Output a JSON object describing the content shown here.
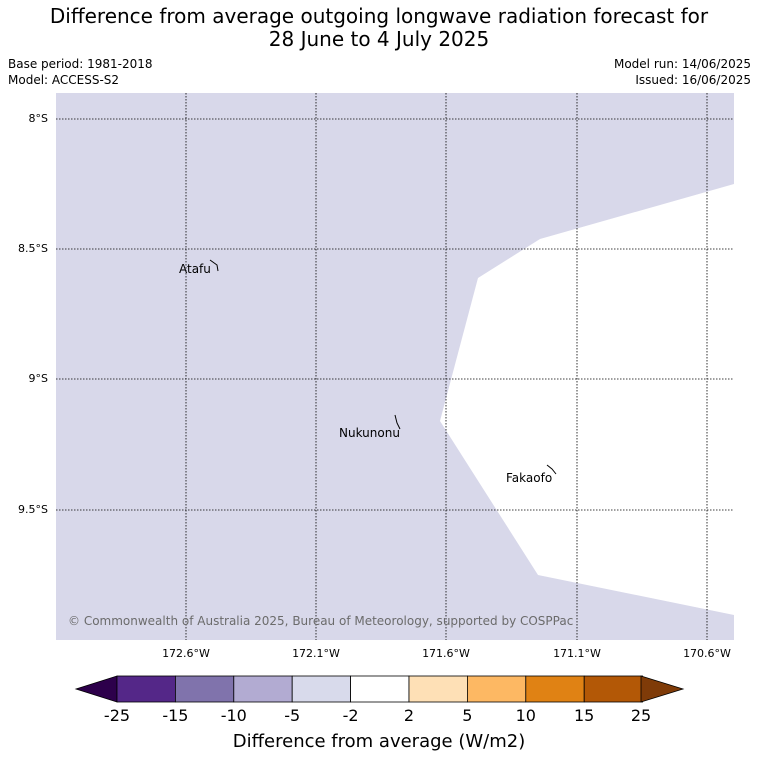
{
  "header": {
    "title_line1": "Difference from average outgoing longwave radiation forecast for",
    "title_line2": "28 June to 4 July 2025",
    "base_period": "Base period: 1981-2018",
    "model": "Model: ACCESS-S2",
    "model_run": "Model run: 14/06/2025",
    "issued": "Issued: 16/06/2025"
  },
  "map": {
    "lat_labels": [
      "8°S",
      "8.5°S",
      "9°S",
      "9.5°S"
    ],
    "lon_labels": [
      "172.6°W",
      "172.1°W",
      "171.6°W",
      "171.1°W",
      "170.6°W"
    ],
    "places": [
      "Atafu",
      "Nukunonu",
      "Fakaofo"
    ],
    "copyright": "© Commonwealth of Australia 2025, Bureau of Meteorology, supported by COSPPac",
    "fill_colors": {
      "neg_2_to_neg_5": "#d8d8ea",
      "neutral": "#ffffff"
    }
  },
  "colorbar": {
    "ticks": [
      "-25",
      "-15",
      "-10",
      "-5",
      "-2",
      "2",
      "5",
      "10",
      "15",
      "25"
    ],
    "colors": [
      "#2d004b",
      "#542788",
      "#8073ac",
      "#b2abd2",
      "#d8daeb",
      "#ffffff",
      "#fee0b6",
      "#fdb863",
      "#e08214",
      "#b35806",
      "#7f3b08"
    ],
    "label": "Difference from average (W/m2)"
  }
}
